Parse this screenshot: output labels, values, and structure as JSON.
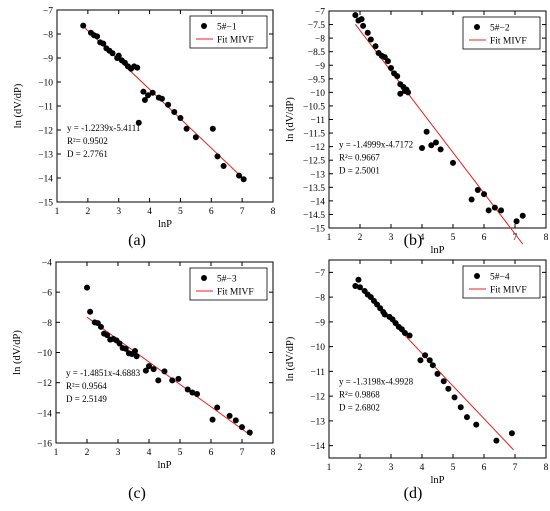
{
  "chart_data": [
    {
      "type": "scatter",
      "panel_label": "(a)",
      "xlabel": "lnP",
      "ylabel": "ln (dV/dP)",
      "xlim": [
        1,
        8
      ],
      "ylim": [
        -15,
        -7
      ],
      "xticks": [
        1,
        2,
        3,
        4,
        5,
        6,
        7,
        8
      ],
      "yticks": [
        -15,
        -14,
        -13,
        -12,
        -11,
        -10,
        -9,
        -8,
        -7
      ],
      "legend": {
        "points_label": "5#−1",
        "line_label": "Fit MIVF",
        "placement": "top-right"
      },
      "annotation": [
        "y = -1.2239x-5.4111",
        "R²= 0.9502",
        "D = 2.7761"
      ],
      "fit_line": {
        "slope": -1.2239,
        "intercept": -5.4111,
        "x_range": [
          1.85,
          7.1
        ]
      },
      "points": [
        [
          1.85,
          -7.65
        ],
        [
          2.1,
          -7.95
        ],
        [
          2.2,
          -8.05
        ],
        [
          2.3,
          -8.1
        ],
        [
          2.4,
          -8.35
        ],
        [
          2.5,
          -8.4
        ],
        [
          2.6,
          -8.6
        ],
        [
          2.7,
          -8.7
        ],
        [
          2.8,
          -8.8
        ],
        [
          2.95,
          -9.0
        ],
        [
          3.0,
          -8.9
        ],
        [
          3.1,
          -9.1
        ],
        [
          3.2,
          -9.2
        ],
        [
          3.3,
          -9.35
        ],
        [
          3.4,
          -9.45
        ],
        [
          3.5,
          -9.35
        ],
        [
          3.6,
          -9.4
        ],
        [
          3.65,
          -11.7
        ],
        [
          3.8,
          -10.4
        ],
        [
          3.85,
          -10.75
        ],
        [
          3.95,
          -10.55
        ],
        [
          4.1,
          -10.45
        ],
        [
          4.3,
          -10.65
        ],
        [
          4.4,
          -10.7
        ],
        [
          4.6,
          -10.95
        ],
        [
          4.8,
          -11.25
        ],
        [
          5.0,
          -11.5
        ],
        [
          5.2,
          -11.95
        ],
        [
          5.5,
          -12.3
        ],
        [
          6.05,
          -11.95
        ],
        [
          6.2,
          -13.1
        ],
        [
          6.4,
          -13.5
        ],
        [
          6.9,
          -13.9
        ],
        [
          7.05,
          -14.05
        ]
      ]
    },
    {
      "type": "scatter",
      "panel_label": "(b)",
      "xlabel": "lnP",
      "ylabel": "ln (dV/dP)",
      "xlim": [
        1,
        8
      ],
      "ylim": [
        -15,
        -7
      ],
      "xticks": [
        1,
        2,
        3,
        4,
        5,
        6,
        7,
        8
      ],
      "yticks": [
        -15,
        -14.5,
        -14,
        -13.5,
        -13,
        -12.5,
        -12,
        -11.5,
        -11,
        -10.5,
        -10,
        -9.5,
        -9,
        -8.5,
        -8,
        -7.5,
        -7
      ],
      "legend": {
        "points_label": "5#−2",
        "line_label": "Fit MIVF",
        "placement": "top-right"
      },
      "annotation": [
        "y = -1.4999x-4.7172",
        "R²= 0.9667",
        "D = 2.5001"
      ],
      "fit_line": {
        "slope": -1.4999,
        "intercept": -4.7172,
        "x_range": [
          1.85,
          7.25
        ]
      },
      "points": [
        [
          1.85,
          -7.15
        ],
        [
          1.95,
          -7.35
        ],
        [
          2.05,
          -7.3
        ],
        [
          2.1,
          -7.55
        ],
        [
          2.25,
          -7.8
        ],
        [
          2.35,
          -8.05
        ],
        [
          2.5,
          -8.3
        ],
        [
          2.6,
          -8.55
        ],
        [
          2.7,
          -8.65
        ],
        [
          2.8,
          -8.7
        ],
        [
          2.9,
          -8.85
        ],
        [
          3.0,
          -9.1
        ],
        [
          3.1,
          -9.3
        ],
        [
          3.2,
          -9.4
        ],
        [
          3.3,
          -9.7
        ],
        [
          3.4,
          -9.8
        ],
        [
          3.45,
          -9.95
        ],
        [
          3.5,
          -9.9
        ],
        [
          3.3,
          -10.05
        ],
        [
          3.55,
          -10.0
        ],
        [
          4.0,
          -12.05
        ],
        [
          4.15,
          -11.45
        ],
        [
          4.3,
          -11.95
        ],
        [
          4.45,
          -11.85
        ],
        [
          4.6,
          -12.1
        ],
        [
          5.0,
          -12.6
        ],
        [
          5.6,
          -13.95
        ],
        [
          5.8,
          -13.6
        ],
        [
          6.0,
          -13.75
        ],
        [
          6.15,
          -14.35
        ],
        [
          6.35,
          -14.25
        ],
        [
          6.55,
          -14.35
        ],
        [
          7.05,
          -14.75
        ],
        [
          7.25,
          -14.55
        ]
      ]
    },
    {
      "type": "scatter",
      "panel_label": "(c)",
      "xlabel": "lnP",
      "ylabel": "ln (dV/dP)",
      "xlim": [
        1,
        8
      ],
      "ylim": [
        -16,
        -4
      ],
      "xticks": [
        1,
        2,
        3,
        4,
        5,
        6,
        7,
        8
      ],
      "yticks": [
        -16,
        -14,
        -12,
        -10,
        -8,
        -6,
        -4
      ],
      "legend": {
        "points_label": "5#−3",
        "line_label": "Fit MIVF",
        "placement": "top-right"
      },
      "annotation": [
        "y = -1.4851x-4.6883",
        "R²= 0.9564",
        "D = 2.5149"
      ],
      "fit_line": {
        "slope": -1.4851,
        "intercept": -4.6883,
        "x_range": [
          2.0,
          7.3
        ]
      },
      "points": [
        [
          2.0,
          -5.7
        ],
        [
          2.1,
          -7.3
        ],
        [
          2.25,
          -8.0
        ],
        [
          2.35,
          -8.05
        ],
        [
          2.45,
          -8.3
        ],
        [
          2.55,
          -8.75
        ],
        [
          2.65,
          -8.85
        ],
        [
          2.75,
          -9.15
        ],
        [
          2.85,
          -9.1
        ],
        [
          2.95,
          -9.2
        ],
        [
          3.05,
          -9.4
        ],
        [
          3.15,
          -9.7
        ],
        [
          3.25,
          -9.75
        ],
        [
          3.35,
          -10.05
        ],
        [
          3.45,
          -10.1
        ],
        [
          3.55,
          -9.9
        ],
        [
          3.6,
          -10.25
        ],
        [
          3.9,
          -11.2
        ],
        [
          4.0,
          -10.9
        ],
        [
          4.15,
          -11.1
        ],
        [
          4.3,
          -11.85
        ],
        [
          4.5,
          -11.25
        ],
        [
          4.75,
          -11.85
        ],
        [
          4.95,
          -11.75
        ],
        [
          5.25,
          -12.45
        ],
        [
          5.4,
          -12.65
        ],
        [
          5.55,
          -12.75
        ],
        [
          6.05,
          -14.45
        ],
        [
          6.2,
          -13.65
        ],
        [
          6.6,
          -14.2
        ],
        [
          6.8,
          -14.5
        ],
        [
          7.0,
          -14.95
        ],
        [
          7.25,
          -15.3
        ]
      ]
    },
    {
      "type": "scatter",
      "panel_label": "(d)",
      "xlabel": "lnP",
      "ylabel": "ln (dV/dP)",
      "xlim": [
        1,
        8
      ],
      "ylim": [
        -14.5,
        -6.5
      ],
      "xticks": [
        1,
        2,
        3,
        4,
        5,
        6,
        7,
        8
      ],
      "yticks": [
        -14,
        -13,
        -12,
        -11,
        -10,
        -9,
        -8,
        -7
      ],
      "legend": {
        "points_label": "5#−4",
        "line_label": "Fit MIVF",
        "placement": "top-right"
      },
      "annotation": [
        "y = -1.3198x-4.9928",
        "R²= 0.9868",
        "D = 2.6802"
      ],
      "fit_line": {
        "slope": -1.3198,
        "intercept": -4.9928,
        "x_range": [
          1.85,
          6.95
        ]
      },
      "points": [
        [
          1.85,
          -7.55
        ],
        [
          1.95,
          -7.3
        ],
        [
          2.0,
          -7.6
        ],
        [
          2.15,
          -7.75
        ],
        [
          2.25,
          -7.9
        ],
        [
          2.35,
          -8.0
        ],
        [
          2.45,
          -8.15
        ],
        [
          2.55,
          -8.3
        ],
        [
          2.65,
          -8.45
        ],
        [
          2.75,
          -8.6
        ],
        [
          2.8,
          -8.7
        ],
        [
          2.95,
          -8.8
        ],
        [
          3.05,
          -8.9
        ],
        [
          3.15,
          -9.05
        ],
        [
          3.25,
          -9.2
        ],
        [
          3.35,
          -9.3
        ],
        [
          3.45,
          -9.45
        ],
        [
          3.6,
          -9.55
        ],
        [
          3.95,
          -10.55
        ],
        [
          4.1,
          -10.35
        ],
        [
          4.25,
          -10.55
        ],
        [
          4.35,
          -10.75
        ],
        [
          4.5,
          -11.1
        ],
        [
          4.7,
          -11.4
        ],
        [
          4.85,
          -11.7
        ],
        [
          5.05,
          -12.05
        ],
        [
          5.25,
          -12.45
        ],
        [
          5.45,
          -12.85
        ],
        [
          5.75,
          -13.15
        ],
        [
          6.4,
          -13.8
        ],
        [
          6.9,
          -13.5
        ]
      ]
    }
  ],
  "colors": {
    "fit_line": "#e8221c",
    "points": "#000000",
    "axes": "#000000"
  }
}
